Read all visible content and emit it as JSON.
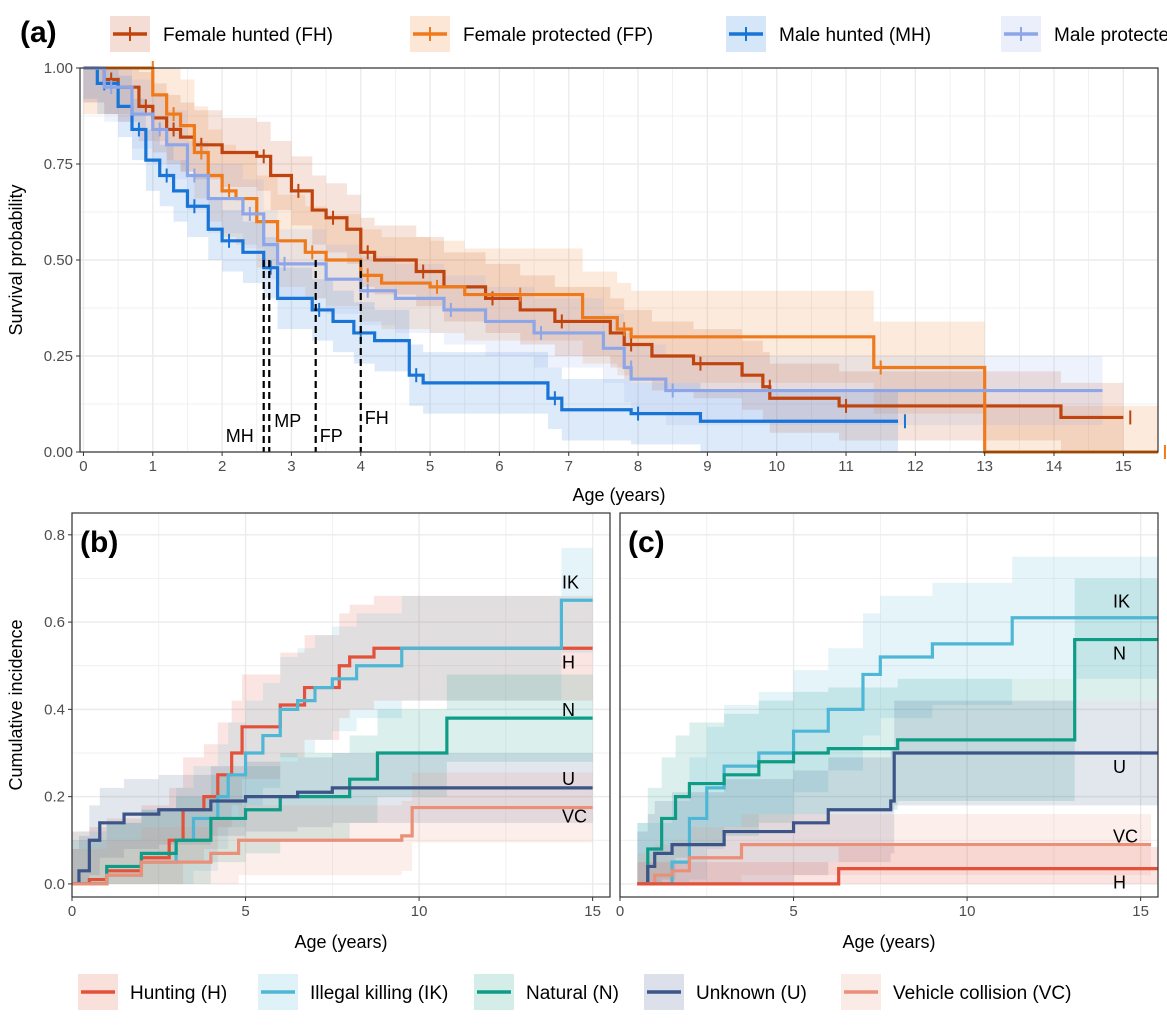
{
  "chart_data": [
    {
      "panel": "(a)",
      "type": "line",
      "step": true,
      "xlabel": "Age (years)",
      "ylabel": "Survival probability",
      "xlim": [
        -0.05,
        15.5
      ],
      "ylim": [
        0,
        1
      ],
      "grid": true,
      "legend": "top",
      "xticks": [
        0,
        1,
        2,
        3,
        4,
        5,
        6,
        7,
        8,
        9,
        10,
        11,
        12,
        13,
        14,
        15
      ],
      "yticks": [
        "0.00",
        "0.25",
        "0.50",
        "0.75",
        "1.00"
      ],
      "series": [
        {
          "name": "Female hunted (FH)",
          "label": "FH",
          "color": "#c0440e",
          "ci_halfwidth": 0.09,
          "median": 4.0,
          "points": [
            [
              0,
              1
            ],
            [
              0.3,
              0.97
            ],
            [
              0.5,
              0.95
            ],
            [
              0.8,
              0.9
            ],
            [
              1,
              0.87
            ],
            [
              1.2,
              0.84
            ],
            [
              1.4,
              0.82
            ],
            [
              1.6,
              0.8
            ],
            [
              2,
              0.78
            ],
            [
              2.5,
              0.77
            ],
            [
              2.7,
              0.72
            ],
            [
              3,
              0.68
            ],
            [
              3.3,
              0.63
            ],
            [
              3.5,
              0.61
            ],
            [
              3.8,
              0.58
            ],
            [
              4,
              0.52
            ],
            [
              4.2,
              0.5
            ],
            [
              4.8,
              0.47
            ],
            [
              5.2,
              0.43
            ],
            [
              5.8,
              0.4
            ],
            [
              6.3,
              0.37
            ],
            [
              6.8,
              0.34
            ],
            [
              7.6,
              0.31
            ],
            [
              7.8,
              0.28
            ],
            [
              8.2,
              0.25
            ],
            [
              8.8,
              0.23
            ],
            [
              9.5,
              0.2
            ],
            [
              9.8,
              0.17
            ],
            [
              9.9,
              0.14
            ],
            [
              10.9,
              0.12
            ],
            [
              14.1,
              0.09
            ],
            [
              15,
              0.09
            ]
          ]
        },
        {
          "name": "Female protected (FP)",
          "label": "FP",
          "color": "#ee7a1b",
          "ci_halfwidth": 0.12,
          "median": 3.35,
          "points": [
            [
              0,
              1
            ],
            [
              0.9,
              1
            ],
            [
              1,
              0.93
            ],
            [
              1.2,
              0.88
            ],
            [
              1.4,
              0.85
            ],
            [
              1.6,
              0.78
            ],
            [
              1.8,
              0.72
            ],
            [
              2,
              0.68
            ],
            [
              2.2,
              0.66
            ],
            [
              2.5,
              0.6
            ],
            [
              2.8,
              0.55
            ],
            [
              3.2,
              0.52
            ],
            [
              3.5,
              0.5
            ],
            [
              4,
              0.46
            ],
            [
              4.3,
              0.44
            ],
            [
              5,
              0.43
            ],
            [
              5.5,
              0.41
            ],
            [
              6.2,
              0.41
            ],
            [
              7.2,
              0.35
            ],
            [
              7.7,
              0.32
            ],
            [
              7.9,
              0.3
            ],
            [
              11.4,
              0.22
            ],
            [
              13,
              0
            ],
            [
              15.5,
              0
            ]
          ]
        },
        {
          "name": "Male hunted (MH)",
          "label": "MH",
          "color": "#1874d6",
          "ci_halfwidth": 0.08,
          "median": 2.6,
          "points": [
            [
              0,
              1
            ],
            [
              0.2,
              0.96
            ],
            [
              0.5,
              0.9
            ],
            [
              0.7,
              0.84
            ],
            [
              0.9,
              0.76
            ],
            [
              1.1,
              0.72
            ],
            [
              1.3,
              0.68
            ],
            [
              1.5,
              0.64
            ],
            [
              1.8,
              0.58
            ],
            [
              2,
              0.55
            ],
            [
              2.3,
              0.52
            ],
            [
              2.6,
              0.48
            ],
            [
              2.8,
              0.4
            ],
            [
              3.3,
              0.37
            ],
            [
              3.6,
              0.34
            ],
            [
              3.9,
              0.31
            ],
            [
              4.2,
              0.29
            ],
            [
              4.7,
              0.2
            ],
            [
              4.9,
              0.18
            ],
            [
              6.7,
              0.14
            ],
            [
              6.9,
              0.11
            ],
            [
              7.9,
              0.1
            ],
            [
              8.9,
              0.08
            ],
            [
              11.75,
              0.08
            ]
          ]
        },
        {
          "name": "Male protected (MP)",
          "label": "MP",
          "color": "#8ca6e8",
          "ci_halfwidth": 0.09,
          "median": 2.68,
          "points": [
            [
              0,
              1
            ],
            [
              0.3,
              0.95
            ],
            [
              0.7,
              0.88
            ],
            [
              1,
              0.84
            ],
            [
              1.2,
              0.8
            ],
            [
              1.5,
              0.72
            ],
            [
              1.8,
              0.66
            ],
            [
              2.3,
              0.62
            ],
            [
              2.6,
              0.54
            ],
            [
              2.8,
              0.49
            ],
            [
              3.5,
              0.45
            ],
            [
              4,
              0.42
            ],
            [
              4.5,
              0.4
            ],
            [
              5.2,
              0.37
            ],
            [
              5.8,
              0.34
            ],
            [
              6.5,
              0.31
            ],
            [
              7.5,
              0.27
            ],
            [
              7.8,
              0.22
            ],
            [
              7.9,
              0.19
            ],
            [
              8.4,
              0.16
            ],
            [
              14.7,
              0.16
            ]
          ]
        }
      ]
    },
    {
      "panel": "(b)",
      "type": "line",
      "step": true,
      "xlabel": "Age (years)",
      "ylabel": "Cumulative incidence",
      "xlim": [
        0,
        15.5
      ],
      "ylim": [
        -0.03,
        0.85
      ],
      "grid": true,
      "xticks": [
        0,
        5,
        10,
        15
      ],
      "yticks": [
        "0.0",
        "0.2",
        "0.4",
        "0.6",
        "0.8"
      ],
      "series": [
        {
          "name": "Hunting (H)",
          "label": "H",
          "color": "#e3513a",
          "ci_halfwidth": 0.12,
          "points": [
            [
              0,
              0
            ],
            [
              0.5,
              0.01
            ],
            [
              1,
              0.03
            ],
            [
              2,
              0.06
            ],
            [
              2.8,
              0.1
            ],
            [
              3.2,
              0.17
            ],
            [
              3.8,
              0.2
            ],
            [
              4.2,
              0.25
            ],
            [
              4.6,
              0.3
            ],
            [
              4.9,
              0.36
            ],
            [
              5.7,
              0.36
            ],
            [
              6,
              0.41
            ],
            [
              6.7,
              0.45
            ],
            [
              7.7,
              0.5
            ],
            [
              8,
              0.52
            ],
            [
              8.7,
              0.54
            ],
            [
              15,
              0.54
            ]
          ]
        },
        {
          "name": "Illegal killing (IK)",
          "label": "IK",
          "color": "#4fb7d6",
          "ci_halfwidth": 0.12,
          "points": [
            [
              0,
              0
            ],
            [
              1,
              0.02
            ],
            [
              2,
              0.05
            ],
            [
              3,
              0.1
            ],
            [
              3.5,
              0.15
            ],
            [
              4.2,
              0.2
            ],
            [
              4.5,
              0.25
            ],
            [
              5,
              0.3
            ],
            [
              5.5,
              0.34
            ],
            [
              6,
              0.4
            ],
            [
              6.5,
              0.42
            ],
            [
              7,
              0.45
            ],
            [
              7.5,
              0.47
            ],
            [
              8.2,
              0.5
            ],
            [
              9.5,
              0.54
            ],
            [
              14,
              0.54
            ],
            [
              14.1,
              0.65
            ],
            [
              15,
              0.65
            ]
          ]
        },
        {
          "name": "Natural (N)",
          "label": "N",
          "color": "#0e9c87",
          "ci_halfwidth": 0.1,
          "points": [
            [
              0,
              0
            ],
            [
              1,
              0.04
            ],
            [
              2,
              0.07
            ],
            [
              3,
              0.1
            ],
            [
              4,
              0.15
            ],
            [
              5,
              0.17
            ],
            [
              6,
              0.2
            ],
            [
              8,
              0.24
            ],
            [
              8.8,
              0.3
            ],
            [
              10.8,
              0.38
            ],
            [
              15,
              0.38
            ]
          ]
        },
        {
          "name": "Unknown (U)",
          "label": "U",
          "color": "#3c5488",
          "ci_halfwidth": 0.08,
          "points": [
            [
              0,
              0
            ],
            [
              0.2,
              0.03
            ],
            [
              0.5,
              0.1
            ],
            [
              0.8,
              0.14
            ],
            [
              1.5,
              0.16
            ],
            [
              2.5,
              0.17
            ],
            [
              4,
              0.19
            ],
            [
              5,
              0.2
            ],
            [
              6.5,
              0.21
            ],
            [
              7.5,
              0.22
            ],
            [
              15,
              0.22
            ]
          ]
        },
        {
          "name": "Vehicle collision (VC)",
          "label": "VC",
          "color": "#ea9079",
          "ci_halfwidth": 0.08,
          "points": [
            [
              0,
              0
            ],
            [
              1,
              0.02
            ],
            [
              2,
              0.05
            ],
            [
              4,
              0.07
            ],
            [
              4.8,
              0.1
            ],
            [
              9.5,
              0.11
            ],
            [
              9.8,
              0.175
            ],
            [
              15,
              0.175
            ]
          ]
        }
      ]
    },
    {
      "panel": "(c)",
      "type": "line",
      "step": true,
      "xlabel": "Age (years)",
      "ylabel": "",
      "xlim": [
        0,
        15.5
      ],
      "ylim": [
        -0.03,
        0.85
      ],
      "grid": true,
      "xticks": [
        0,
        5,
        10,
        15
      ],
      "yticks": [],
      "series": [
        {
          "name": "Illegal killing (IK)",
          "label": "IK",
          "color": "#4fb7d6",
          "ci_halfwidth": 0.14,
          "points": [
            [
              0.5,
              0
            ],
            [
              1.5,
              0.05
            ],
            [
              2,
              0.15
            ],
            [
              2.5,
              0.22
            ],
            [
              3,
              0.27
            ],
            [
              4,
              0.3
            ],
            [
              5,
              0.35
            ],
            [
              6,
              0.4
            ],
            [
              7,
              0.48
            ],
            [
              7.5,
              0.52
            ],
            [
              9,
              0.55
            ],
            [
              11.3,
              0.61
            ],
            [
              15.5,
              0.61
            ]
          ]
        },
        {
          "name": "Natural (N)",
          "label": "N",
          "color": "#0e9c87",
          "ci_halfwidth": 0.14,
          "points": [
            [
              0.5,
              0
            ],
            [
              0.8,
              0.08
            ],
            [
              1.2,
              0.15
            ],
            [
              1.6,
              0.2
            ],
            [
              2,
              0.23
            ],
            [
              3,
              0.25
            ],
            [
              4,
              0.28
            ],
            [
              5,
              0.3
            ],
            [
              6,
              0.31
            ],
            [
              8,
              0.33
            ],
            [
              13,
              0.33
            ],
            [
              13.1,
              0.56
            ],
            [
              15.5,
              0.56
            ]
          ]
        },
        {
          "name": "Unknown (U)",
          "label": "U",
          "color": "#3c5488",
          "ci_halfwidth": 0.12,
          "points": [
            [
              0.5,
              0
            ],
            [
              0.8,
              0.04
            ],
            [
              1,
              0.07
            ],
            [
              1.5,
              0.09
            ],
            [
              3,
              0.12
            ],
            [
              5,
              0.14
            ],
            [
              6,
              0.17
            ],
            [
              7.8,
              0.19
            ],
            [
              7.9,
              0.3
            ],
            [
              15.5,
              0.3
            ]
          ]
        },
        {
          "name": "Vehicle collision (VC)",
          "label": "VC",
          "color": "#ea9079",
          "ci_halfwidth": 0.07,
          "points": [
            [
              0.5,
              0
            ],
            [
              1,
              0.02
            ],
            [
              1.5,
              0.03
            ],
            [
              2,
              0.06
            ],
            [
              3.5,
              0.09
            ],
            [
              15.3,
              0.09
            ]
          ]
        },
        {
          "name": "Hunting (H)",
          "label": "H",
          "color": "#e3513a",
          "ci_halfwidth": 0.05,
          "points": [
            [
              0.5,
              0
            ],
            [
              6.3,
              0
            ],
            [
              6.3,
              0.035
            ],
            [
              15.5,
              0.035
            ]
          ]
        }
      ]
    }
  ],
  "bottom_legend": [
    {
      "name": "Hunting (H)",
      "color": "#e3513a"
    },
    {
      "name": "Illegal killing (IK)",
      "color": "#4fb7d6"
    },
    {
      "name": "Natural (N)",
      "color": "#0e9c87"
    },
    {
      "name": "Unknown (U)",
      "color": "#3c5488"
    },
    {
      "name": "Vehicle collision (VC)",
      "color": "#ea9079"
    }
  ]
}
